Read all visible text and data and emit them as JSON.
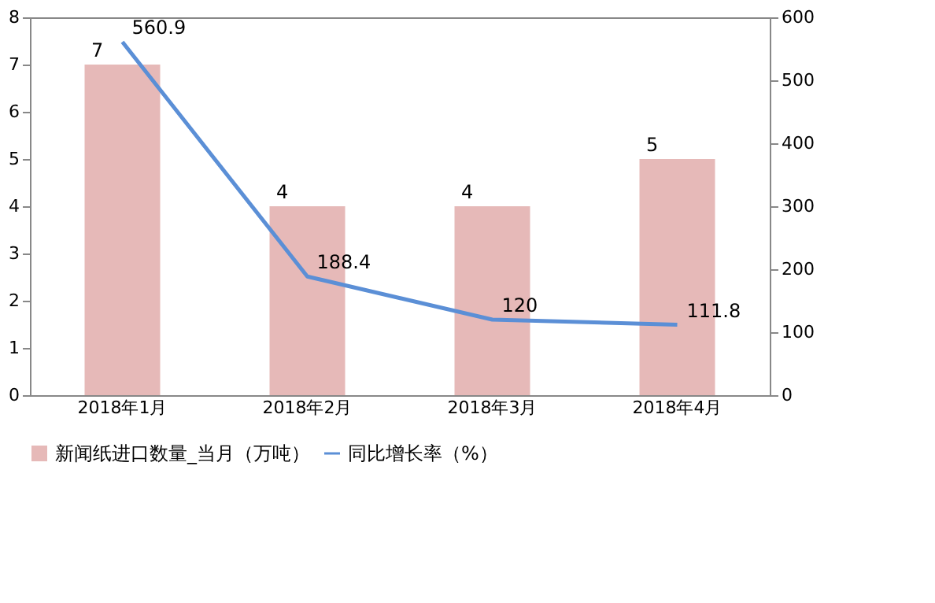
{
  "chart_data": {
    "type": "bar",
    "categories": [
      "2018年1月",
      "2018年2月",
      "2018年3月",
      "2018年4月"
    ],
    "series": [
      {
        "name": "新闻纸进口数量_当月（万吨）",
        "color": "#e6b9b8",
        "values": [
          7,
          4,
          4,
          5
        ]
      },
      {
        "name": "同比增长率（%）",
        "type": "line",
        "axis": "y2",
        "color": "#5b8fd6",
        "values": [
          560.9,
          188.4,
          120,
          111.8
        ]
      }
    ],
    "ylim": [
      0,
      8
    ],
    "yticks": [
      0,
      1,
      2,
      3,
      4,
      5,
      6,
      7,
      8
    ],
    "y2lim": [
      0,
      600
    ],
    "y2ticks": [
      0,
      100,
      200,
      300,
      400,
      500,
      600
    ],
    "data_labels": true,
    "grid": false,
    "legend": "bottom left",
    "marker": "none",
    "line_style": "solid"
  }
}
